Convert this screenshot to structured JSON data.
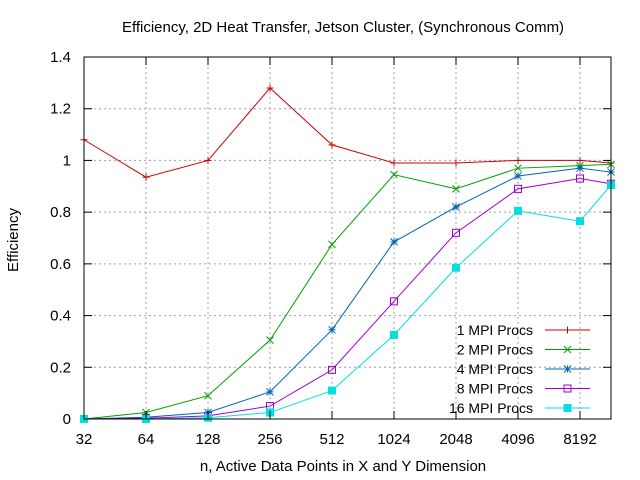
{
  "chart_data": {
    "type": "line",
    "title": "Efficiency, 2D Heat Transfer, Jetson Cluster, (Synchronous Comm)",
    "xlabel": "n, Active Data Points in X and Y Dimension",
    "ylabel": "Efficiency",
    "x_scale": "log2",
    "x": [
      32,
      64,
      128,
      256,
      512,
      1024,
      2048,
      4096,
      8192,
      11585
    ],
    "x_ticks": [
      "32",
      "64",
      "128",
      "256",
      "512",
      "1024",
      "2048",
      "4096",
      "8192"
    ],
    "xlim": [
      32,
      11585
    ],
    "ylim": [
      0,
      1.4
    ],
    "y_ticks": [
      "0",
      "0.2",
      "0.4",
      "0.6",
      "0.8",
      "1",
      "1.2",
      "1.4"
    ],
    "grid": true,
    "legend_position": "bottom-right",
    "series": [
      {
        "name": "1 MPI Procs",
        "color": "#cc0000",
        "marker": "plus",
        "values": [
          1.08,
          0.935,
          1.0,
          1.28,
          1.06,
          0.99,
          0.99,
          1.0,
          1.0,
          0.99
        ]
      },
      {
        "name": "2 MPI Procs",
        "color": "#00a000",
        "marker": "cross",
        "values": [
          0.0,
          0.025,
          0.09,
          0.305,
          0.675,
          0.945,
          0.89,
          0.97,
          0.98,
          0.985
        ]
      },
      {
        "name": "4 MPI Procs",
        "color": "#0064b4",
        "marker": "star",
        "values": [
          0.0,
          0.007,
          0.025,
          0.105,
          0.345,
          0.685,
          0.82,
          0.94,
          0.97,
          0.955
        ]
      },
      {
        "name": "8 MPI Procs",
        "color": "#a000d2",
        "marker": "box",
        "values": [
          0.0,
          0.003,
          0.012,
          0.05,
          0.19,
          0.455,
          0.72,
          0.89,
          0.93,
          0.91
        ]
      },
      {
        "name": "16 MPI Procs",
        "color": "#00e0e0",
        "marker": "filledbox",
        "values": [
          0.0,
          0.0,
          0.005,
          0.025,
          0.11,
          0.325,
          0.585,
          0.805,
          0.765,
          0.905
        ]
      }
    ]
  }
}
